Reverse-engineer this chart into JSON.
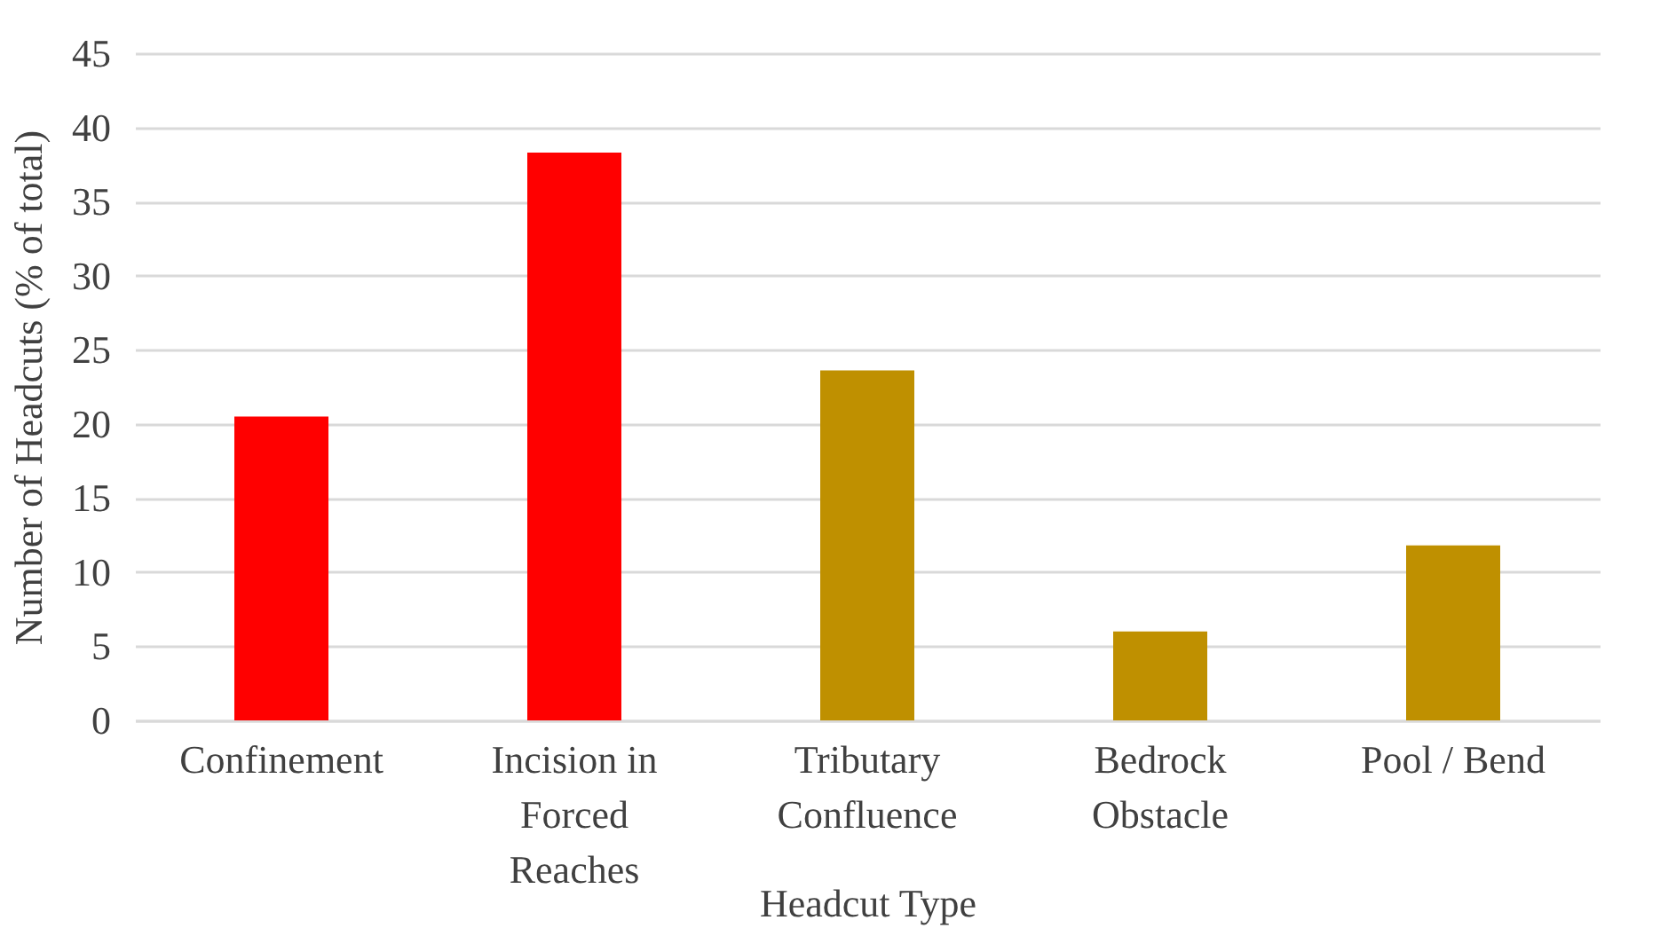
{
  "chart_data": {
    "type": "bar",
    "xlabel": "Headcut Type",
    "ylabel": "Number of Headcuts (% of total)",
    "categories": [
      "Confinement",
      "Incision in Forced Reaches",
      "Tributary Confluence",
      "Bedrock Obstacle",
      "Pool / Bend"
    ],
    "values": [
      20.5,
      38.3,
      23.6,
      6.0,
      11.8
    ],
    "colors": [
      "#ff0000",
      "#ff0000",
      "#bf9000",
      "#bf9000",
      "#bf9000"
    ],
    "ylim": [
      0,
      45
    ],
    "yticks": [
      0,
      5,
      10,
      15,
      20,
      25,
      30,
      35,
      40,
      45
    ],
    "grid": "y"
  }
}
